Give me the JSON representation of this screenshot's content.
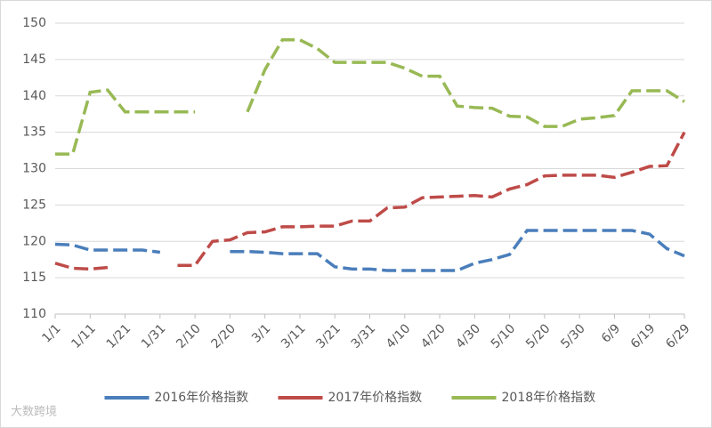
{
  "chart_data": {
    "type": "line",
    "categories": [
      "1/1",
      null,
      "1/11",
      null,
      "1/21",
      null,
      "1/31",
      null,
      "2/10",
      null,
      "2/20",
      null,
      "3/1",
      null,
      "3/11",
      null,
      "3/21",
      null,
      "3/31",
      null,
      "4/10",
      null,
      "4/20",
      null,
      "4/30",
      null,
      "5/10",
      null,
      "5/20",
      null,
      "5/30",
      null,
      "6/9",
      null,
      "6/19",
      null,
      "6/29"
    ],
    "series": [
      {
        "name": "2016年价格指数",
        "color": "#4a7ebb",
        "values": [
          119.6,
          119.5,
          118.8,
          118.8,
          118.8,
          118.8,
          118.5,
          null,
          null,
          null,
          118.6,
          118.6,
          118.5,
          118.3,
          118.3,
          118.3,
          116.5,
          116.2,
          116.2,
          116.0,
          116.0,
          116.0,
          116.0,
          116.0,
          117.0,
          117.5,
          118.2,
          121.5,
          121.5,
          121.5,
          121.5,
          121.5,
          121.5,
          121.5,
          121.0,
          119.0,
          118.0
        ]
      },
      {
        "name": "2017年价格指数",
        "color": "#be4b48",
        "values": [
          117.0,
          116.3,
          116.2,
          116.4,
          null,
          null,
          null,
          116.7,
          116.7,
          120.0,
          120.2,
          121.2,
          121.3,
          122.0,
          122.0,
          122.1,
          122.1,
          122.8,
          122.8,
          124.6,
          124.7,
          126.0,
          126.1,
          126.2,
          126.3,
          126.1,
          127.2,
          127.8,
          129.0,
          129.1,
          129.1,
          129.1,
          128.8,
          129.5,
          130.3,
          130.4,
          135.0
        ]
      },
      {
        "name": "2018年价格指数",
        "color": "#98b954",
        "values": [
          132.0,
          132.0,
          140.5,
          140.8,
          137.8,
          137.8,
          137.8,
          137.8,
          137.8,
          null,
          null,
          137.8,
          143.6,
          147.7,
          147.7,
          146.5,
          144.6,
          144.6,
          144.6,
          144.6,
          143.8,
          142.7,
          142.7,
          138.6,
          138.4,
          138.3,
          137.2,
          137.1,
          135.8,
          135.8,
          136.8,
          137.0,
          137.3,
          140.7,
          140.7,
          140.7,
          139.2
        ]
      }
    ],
    "ylim": [
      110,
      150
    ],
    "yticks": [
      110,
      115,
      120,
      125,
      130,
      135,
      140,
      145,
      150
    ],
    "grid": true,
    "legend": "bottom"
  },
  "watermark": "大数跨境"
}
